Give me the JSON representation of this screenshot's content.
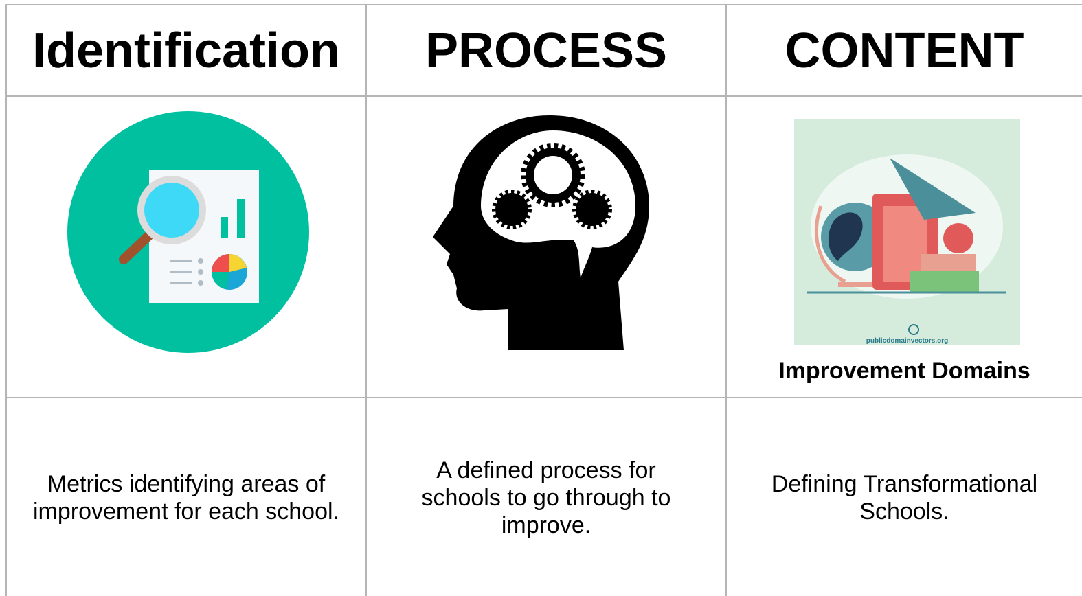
{
  "table": {
    "headers": [
      "Identification",
      "PROCESS",
      "CONTENT"
    ],
    "image_caption": "Improvement Domains",
    "image_credit": "publicdomainvectors.org",
    "descriptions": [
      "Metrics identifying areas of improvement for each school.",
      "A defined process for schools to go through to improve.",
      "Defining Transformational Schools."
    ]
  }
}
